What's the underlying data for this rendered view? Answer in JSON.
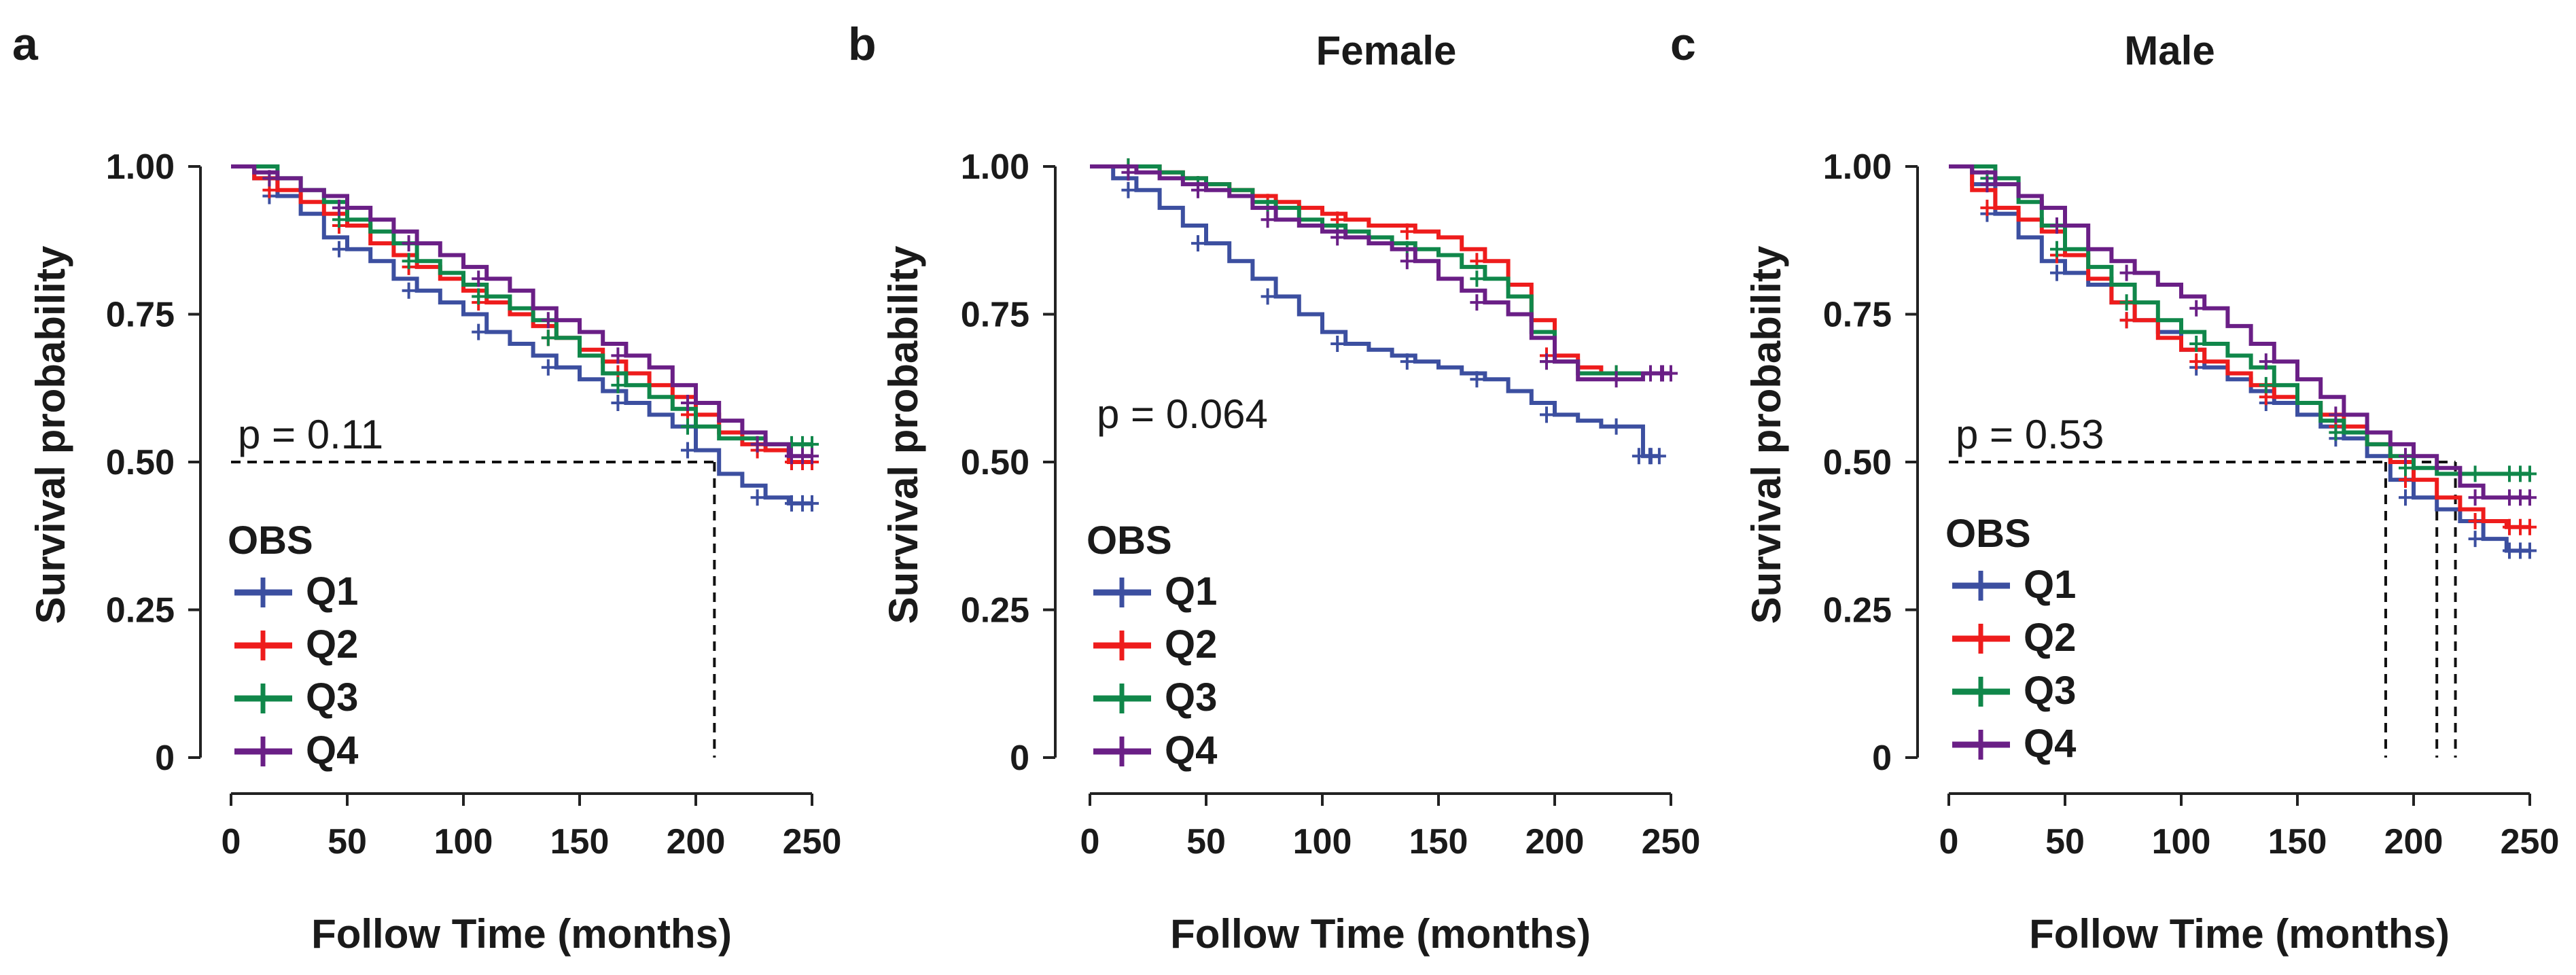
{
  "colors": {
    "Q1": "#3c4fa0",
    "Q2": "#ee1c1c",
    "Q3": "#10874a",
    "Q4": "#6a1f86"
  },
  "chart_data": [
    {
      "type": "line",
      "panel": "a",
      "title": "",
      "xlabel": "Follow Time (months)",
      "ylabel": "Survival probability",
      "xlim": [
        0,
        250
      ],
      "ylim": [
        0,
        1
      ],
      "xticks": [
        0,
        50,
        100,
        150,
        200,
        250
      ],
      "yticks": [
        0,
        0.25,
        0.5,
        0.75,
        1.0
      ],
      "ytick_labels": [
        "0",
        "0.25",
        "0.50",
        "0.75",
        "1.00"
      ],
      "pvalue": "p = 0.11",
      "legend_title": "OBS",
      "median_lines": [
        208
      ],
      "series": [
        {
          "name": "Q1",
          "x": [
            0,
            10,
            20,
            30,
            40,
            50,
            60,
            70,
            80,
            90,
            100,
            110,
            120,
            130,
            140,
            150,
            160,
            170,
            180,
            190,
            200,
            210,
            220,
            230,
            240,
            250
          ],
          "y": [
            1.0,
            0.98,
            0.95,
            0.92,
            0.88,
            0.86,
            0.84,
            0.81,
            0.79,
            0.77,
            0.75,
            0.72,
            0.7,
            0.68,
            0.66,
            0.64,
            0.62,
            0.6,
            0.58,
            0.56,
            0.52,
            0.48,
            0.46,
            0.44,
            0.43,
            0.43
          ]
        },
        {
          "name": "Q2",
          "x": [
            0,
            10,
            20,
            30,
            40,
            50,
            60,
            70,
            80,
            90,
            100,
            110,
            120,
            130,
            140,
            150,
            160,
            170,
            180,
            190,
            200,
            210,
            220,
            230,
            240,
            250
          ],
          "y": [
            1.0,
            0.98,
            0.96,
            0.94,
            0.92,
            0.9,
            0.87,
            0.85,
            0.83,
            0.81,
            0.79,
            0.77,
            0.75,
            0.73,
            0.71,
            0.69,
            0.67,
            0.65,
            0.63,
            0.61,
            0.58,
            0.55,
            0.53,
            0.52,
            0.5,
            0.5
          ]
        },
        {
          "name": "Q3",
          "x": [
            0,
            10,
            20,
            30,
            40,
            50,
            60,
            70,
            80,
            90,
            100,
            110,
            120,
            130,
            140,
            150,
            160,
            170,
            180,
            190,
            200,
            210,
            220,
            230,
            240,
            250
          ],
          "y": [
            1.0,
            1.0,
            0.98,
            0.96,
            0.94,
            0.91,
            0.89,
            0.87,
            0.84,
            0.82,
            0.8,
            0.78,
            0.76,
            0.74,
            0.71,
            0.68,
            0.65,
            0.63,
            0.61,
            0.59,
            0.56,
            0.54,
            0.54,
            0.53,
            0.53,
            0.53
          ]
        },
        {
          "name": "Q4",
          "x": [
            0,
            10,
            20,
            30,
            40,
            50,
            60,
            70,
            80,
            90,
            100,
            110,
            120,
            130,
            140,
            150,
            160,
            170,
            180,
            190,
            200,
            210,
            220,
            230,
            240,
            250
          ],
          "y": [
            1.0,
            0.99,
            0.98,
            0.96,
            0.95,
            0.93,
            0.91,
            0.89,
            0.87,
            0.85,
            0.83,
            0.81,
            0.79,
            0.76,
            0.74,
            0.72,
            0.7,
            0.68,
            0.66,
            0.63,
            0.6,
            0.57,
            0.55,
            0.53,
            0.51,
            0.51
          ]
        }
      ]
    },
    {
      "type": "line",
      "panel": "b",
      "title": "Female",
      "xlabel": "Follow Time (months)",
      "ylabel": "Survival probability",
      "xlim": [
        0,
        250
      ],
      "ylim": [
        0,
        1
      ],
      "xticks": [
        0,
        50,
        100,
        150,
        200,
        250
      ],
      "yticks": [
        0,
        0.25,
        0.5,
        0.75,
        1.0
      ],
      "ytick_labels": [
        "0",
        "0.25",
        "0.50",
        "0.75",
        "1.00"
      ],
      "pvalue": "p = 0.064",
      "legend_title": "OBS",
      "median_lines": [],
      "series": [
        {
          "name": "Q1",
          "x": [
            0,
            10,
            20,
            30,
            40,
            50,
            60,
            70,
            80,
            90,
            100,
            110,
            120,
            130,
            140,
            150,
            160,
            170,
            180,
            190,
            200,
            210,
            220,
            230,
            235,
            238,
            245
          ],
          "y": [
            1.0,
            0.98,
            0.96,
            0.93,
            0.9,
            0.87,
            0.84,
            0.81,
            0.78,
            0.75,
            0.72,
            0.7,
            0.69,
            0.68,
            0.67,
            0.66,
            0.65,
            0.64,
            0.62,
            0.6,
            0.58,
            0.57,
            0.56,
            0.56,
            0.56,
            0.51,
            0.51
          ]
        },
        {
          "name": "Q2",
          "x": [
            0,
            10,
            20,
            30,
            40,
            50,
            60,
            70,
            80,
            90,
            100,
            110,
            120,
            130,
            140,
            150,
            160,
            170,
            180,
            190,
            200,
            210,
            220,
            230,
            240,
            250
          ],
          "y": [
            1.0,
            1.0,
            1.0,
            0.99,
            0.98,
            0.97,
            0.96,
            0.95,
            0.94,
            0.93,
            0.92,
            0.91,
            0.9,
            0.9,
            0.89,
            0.88,
            0.86,
            0.84,
            0.8,
            0.74,
            0.68,
            0.66,
            0.65,
            0.65,
            0.65,
            0.65
          ]
        },
        {
          "name": "Q3",
          "x": [
            0,
            10,
            20,
            30,
            40,
            50,
            60,
            70,
            80,
            90,
            100,
            110,
            120,
            130,
            140,
            150,
            160,
            170,
            180,
            190,
            200,
            210,
            220,
            230,
            240,
            250
          ],
          "y": [
            1.0,
            1.0,
            1.0,
            0.99,
            0.98,
            0.97,
            0.96,
            0.94,
            0.93,
            0.91,
            0.9,
            0.89,
            0.88,
            0.87,
            0.86,
            0.85,
            0.83,
            0.81,
            0.78,
            0.72,
            0.67,
            0.65,
            0.65,
            0.65,
            0.65,
            0.65
          ]
        },
        {
          "name": "Q4",
          "x": [
            0,
            10,
            20,
            30,
            40,
            50,
            60,
            70,
            80,
            90,
            100,
            110,
            120,
            130,
            140,
            150,
            160,
            170,
            180,
            190,
            200,
            210,
            220,
            230,
            236,
            238,
            250
          ],
          "y": [
            1.0,
            1.0,
            0.99,
            0.98,
            0.97,
            0.96,
            0.95,
            0.93,
            0.91,
            0.9,
            0.89,
            0.88,
            0.87,
            0.86,
            0.84,
            0.81,
            0.79,
            0.77,
            0.75,
            0.71,
            0.67,
            0.64,
            0.64,
            0.64,
            0.64,
            0.65,
            0.65
          ]
        }
      ]
    },
    {
      "type": "line",
      "panel": "c",
      "title": "Male",
      "xlabel": "Follow Time (months)",
      "ylabel": "Survival probability",
      "xlim": [
        0,
        250
      ],
      "ylim": [
        0,
        1
      ],
      "xticks": [
        0,
        50,
        100,
        150,
        200,
        250
      ],
      "yticks": [
        0,
        0.25,
        0.5,
        0.75,
        1.0
      ],
      "ytick_labels": [
        "0",
        "0.25",
        "0.50",
        "0.75",
        "1.00"
      ],
      "pvalue": "p = 0.53",
      "legend_title": "OBS",
      "median_lines": [
        188,
        210,
        218
      ],
      "series": [
        {
          "name": "Q1",
          "x": [
            0,
            10,
            20,
            30,
            40,
            50,
            60,
            70,
            80,
            90,
            100,
            110,
            120,
            130,
            140,
            150,
            160,
            170,
            180,
            190,
            200,
            210,
            220,
            230,
            240,
            250
          ],
          "y": [
            1.0,
            0.97,
            0.92,
            0.88,
            0.84,
            0.82,
            0.8,
            0.77,
            0.74,
            0.72,
            0.69,
            0.66,
            0.64,
            0.62,
            0.6,
            0.58,
            0.56,
            0.54,
            0.51,
            0.47,
            0.44,
            0.42,
            0.4,
            0.37,
            0.35,
            0.35
          ]
        },
        {
          "name": "Q2",
          "x": [
            0,
            10,
            20,
            30,
            40,
            50,
            60,
            70,
            80,
            90,
            100,
            110,
            120,
            130,
            140,
            150,
            160,
            170,
            180,
            190,
            200,
            210,
            220,
            230,
            240,
            250
          ],
          "y": [
            1.0,
            0.96,
            0.93,
            0.91,
            0.89,
            0.85,
            0.81,
            0.77,
            0.74,
            0.71,
            0.69,
            0.67,
            0.65,
            0.63,
            0.61,
            0.6,
            0.58,
            0.56,
            0.53,
            0.5,
            0.47,
            0.44,
            0.42,
            0.4,
            0.39,
            0.39
          ]
        },
        {
          "name": "Q3",
          "x": [
            0,
            10,
            20,
            30,
            40,
            50,
            60,
            70,
            80,
            90,
            100,
            110,
            120,
            130,
            140,
            150,
            160,
            170,
            180,
            190,
            200,
            210,
            220,
            230,
            240,
            250
          ],
          "y": [
            1.0,
            1.0,
            0.98,
            0.94,
            0.9,
            0.86,
            0.83,
            0.8,
            0.77,
            0.74,
            0.72,
            0.7,
            0.68,
            0.66,
            0.63,
            0.6,
            0.57,
            0.55,
            0.53,
            0.51,
            0.49,
            0.48,
            0.48,
            0.48,
            0.48,
            0.48
          ]
        },
        {
          "name": "Q4",
          "x": [
            0,
            10,
            20,
            30,
            40,
            50,
            60,
            70,
            80,
            90,
            100,
            110,
            120,
            130,
            140,
            150,
            160,
            170,
            180,
            190,
            200,
            210,
            220,
            230,
            240,
            250
          ],
          "y": [
            1.0,
            0.99,
            0.97,
            0.95,
            0.93,
            0.9,
            0.86,
            0.84,
            0.82,
            0.8,
            0.78,
            0.76,
            0.73,
            0.7,
            0.67,
            0.64,
            0.61,
            0.58,
            0.55,
            0.53,
            0.51,
            0.49,
            0.46,
            0.44,
            0.44,
            0.44
          ]
        }
      ]
    }
  ]
}
